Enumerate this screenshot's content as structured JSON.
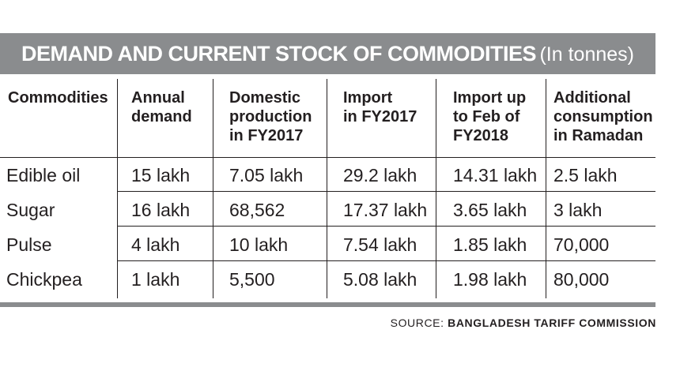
{
  "title": {
    "main": "DEMAND AND CURRENT STOCK OF COMMODITIES",
    "unit": "(In tonnes)"
  },
  "table": {
    "headers": [
      "Commodities",
      "Annual\ndemand",
      "Domestic\nproduction\nin FY2017",
      "Import\nin FY2017",
      "Import up\nto Feb of\nFY2018",
      "Additional\nconsumption\nin Ramadan"
    ],
    "rows": [
      [
        "Edible oil",
        "15 lakh",
        "7.05 lakh",
        "29.2 lakh",
        "14.31 lakh",
        "2.5 lakh"
      ],
      [
        "Sugar",
        "16 lakh",
        "68,562",
        "17.37 lakh",
        "3.65 lakh",
        "3 lakh"
      ],
      [
        "Pulse",
        "4 lakh",
        "10 lakh",
        "7.54 lakh",
        "1.85 lakh",
        "70,000"
      ],
      [
        "Chickpea",
        "1 lakh",
        "5,500",
        "5.08 lakh",
        "1.98 lakh",
        "80,000"
      ]
    ]
  },
  "source": {
    "label": "SOURCE:",
    "org": "BANGLADESH TARIFF COMMISSION"
  },
  "colors": {
    "banner": "#8a8c8e",
    "text": "#231f20",
    "background": "#ffffff"
  }
}
